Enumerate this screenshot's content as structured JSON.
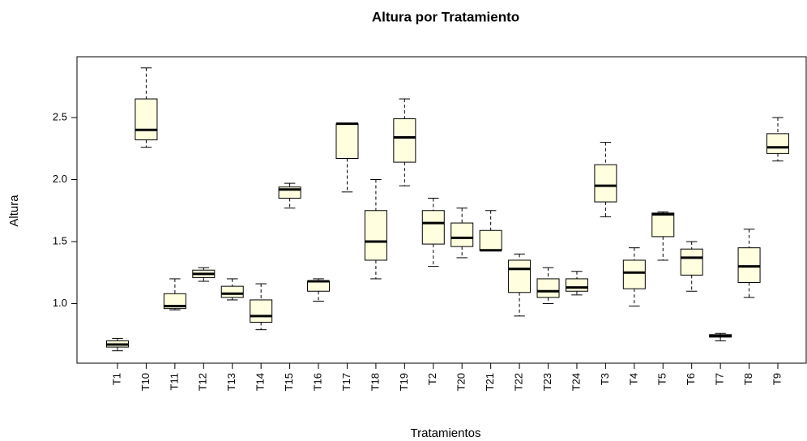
{
  "chart_data": {
    "type": "box",
    "title": "Altura por Tratamiento",
    "x_label": "Tratamientos",
    "y_label": "Altura",
    "color": "#ffffe0",
    "categories": [
      "T1",
      "T10",
      "T11",
      "T12",
      "T13",
      "T14",
      "T15",
      "T16",
      "T17",
      "T18",
      "T19",
      "T2",
      "T20",
      "T21",
      "T22",
      "T23",
      "T24",
      "T3",
      "T4",
      "T5",
      "T6",
      "T7",
      "T8",
      "T9"
    ],
    "min": [
      0.62,
      2.26,
      0.95,
      1.18,
      1.03,
      0.79,
      1.77,
      1.02,
      1.9,
      1.2,
      1.95,
      1.3,
      1.37,
      1.43,
      0.9,
      1.0,
      1.07,
      1.7,
      0.98,
      1.35,
      1.1,
      0.7,
      1.05,
      2.15
    ],
    "q1": [
      0.65,
      2.32,
      0.96,
      1.21,
      1.05,
      0.85,
      1.85,
      1.1,
      2.17,
      1.35,
      2.14,
      1.48,
      1.46,
      1.43,
      1.09,
      1.05,
      1.1,
      1.82,
      1.12,
      1.54,
      1.23,
      0.73,
      1.17,
      2.21
    ],
    "median": [
      0.67,
      2.4,
      0.98,
      1.24,
      1.08,
      0.9,
      1.92,
      1.18,
      2.45,
      1.5,
      2.34,
      1.65,
      1.53,
      1.43,
      1.28,
      1.1,
      1.13,
      1.95,
      1.25,
      1.72,
      1.37,
      0.74,
      1.3,
      2.26
    ],
    "q3": [
      0.7,
      2.65,
      1.08,
      1.27,
      1.14,
      1.03,
      1.94,
      1.18,
      2.45,
      1.75,
      2.49,
      1.75,
      1.65,
      1.59,
      1.35,
      1.2,
      1.2,
      2.12,
      1.35,
      1.73,
      1.44,
      0.75,
      1.45,
      2.37
    ],
    "max": [
      0.72,
      2.9,
      1.2,
      1.29,
      1.2,
      1.16,
      1.97,
      1.2,
      2.45,
      2.0,
      2.65,
      1.85,
      1.77,
      1.75,
      1.4,
      1.29,
      1.26,
      2.3,
      1.45,
      1.74,
      1.5,
      0.76,
      1.6,
      2.5
    ],
    "ylim": [
      0.52,
      2.99
    ],
    "yticks": [
      {
        "value": 1,
        "label": "1.0"
      },
      {
        "value": 1.5,
        "label": "1.5"
      },
      {
        "value": 2,
        "label": "2.0"
      },
      {
        "value": 2.5,
        "label": "2.5"
      }
    ]
  }
}
